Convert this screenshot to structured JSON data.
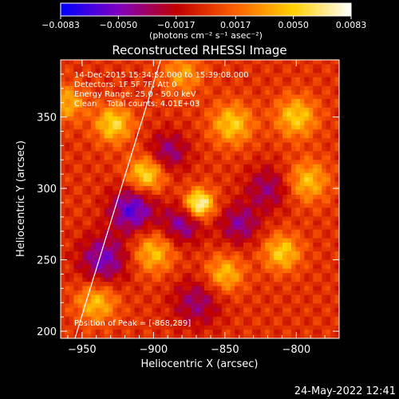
{
  "chart_data": {
    "type": "heatmap",
    "title": "Reconstructed RHESSI Image",
    "xlabel": "Heliocentric X (arcsec)",
    "ylabel": "Heliocentric Y (arcsec)",
    "xlim": [
      -965,
      -770
    ],
    "ylim": [
      195,
      390
    ],
    "x_ticks": [
      -950,
      -900,
      -850,
      -800
    ],
    "y_ticks": [
      200,
      250,
      300,
      350
    ],
    "x_tick_labels": [
      "−950",
      "−900",
      "−850",
      "−800"
    ],
    "y_tick_labels": [
      "200",
      "250",
      "300",
      "350"
    ],
    "colorbar": {
      "range": [
        -0.0083,
        0.0083
      ],
      "ticks": [
        -0.0083,
        -0.005,
        -0.0017,
        0.0017,
        0.005,
        0.0083
      ],
      "tick_labels": [
        "−0.0083",
        "−0.0050",
        "−0.0017",
        "0.0017",
        "0.0050",
        "0.0083"
      ],
      "colormap": [
        "#0000ff",
        "#8000c0",
        "#c00000",
        "#ff6000",
        "#ffd000",
        "#ffffff"
      ],
      "units_label": "(photons cm⁻² s⁻¹ asec⁻²)"
    },
    "annotations": [
      "14-Dec-2015 15:34:52.000 to 15:39:08.000",
      "Detectors: 1F 5F 7F, Att 0",
      "Energy Range: 25.0 - 50.0 keV",
      "Clean    Total counts: 4.01E+03"
    ],
    "peak": {
      "x": -868,
      "y": 289,
      "label": "Position of Peak = [-868,289]"
    },
    "sources": [
      {
        "x": -868,
        "y": 289,
        "amplitude": 0.0083,
        "sigma": 7
      },
      {
        "x": -905,
        "y": 310,
        "amplitude": 0.006,
        "sigma": 9
      },
      {
        "x": -928,
        "y": 345,
        "amplitude": 0.0055,
        "sigma": 9
      },
      {
        "x": -845,
        "y": 345,
        "amplitude": 0.005,
        "sigma": 10
      },
      {
        "x": -800,
        "y": 350,
        "amplitude": 0.005,
        "sigma": 10
      },
      {
        "x": -792,
        "y": 305,
        "amplitude": 0.0045,
        "sigma": 10
      },
      {
        "x": -810,
        "y": 255,
        "amplitude": 0.005,
        "sigma": 9
      },
      {
        "x": -850,
        "y": 240,
        "amplitude": 0.0045,
        "sigma": 9
      },
      {
        "x": -900,
        "y": 255,
        "amplitude": 0.0045,
        "sigma": 10
      },
      {
        "x": -940,
        "y": 220,
        "amplitude": 0.0045,
        "sigma": 10
      },
      {
        "x": -960,
        "y": 360,
        "amplitude": 0.004,
        "sigma": 9
      },
      {
        "x": -880,
        "y": 380,
        "amplitude": 0.0035,
        "sigma": 10
      },
      {
        "x": -880,
        "y": 275,
        "amplitude": -0.0045,
        "sigma": 10
      },
      {
        "x": -915,
        "y": 285,
        "amplitude": -0.006,
        "sigma": 11
      },
      {
        "x": -840,
        "y": 275,
        "amplitude": -0.004,
        "sigma": 10
      },
      {
        "x": -890,
        "y": 325,
        "amplitude": -0.004,
        "sigma": 10
      },
      {
        "x": -935,
        "y": 250,
        "amplitude": -0.005,
        "sigma": 12
      },
      {
        "x": -870,
        "y": 220,
        "amplitude": -0.0035,
        "sigma": 12
      },
      {
        "x": -820,
        "y": 300,
        "amplitude": -0.0035,
        "sigma": 11
      }
    ],
    "limb_line": [
      [
        -955,
        195
      ],
      [
        -895,
        390
      ]
    ]
  },
  "footer": {
    "timestamp": "24-May-2022 12:41"
  }
}
